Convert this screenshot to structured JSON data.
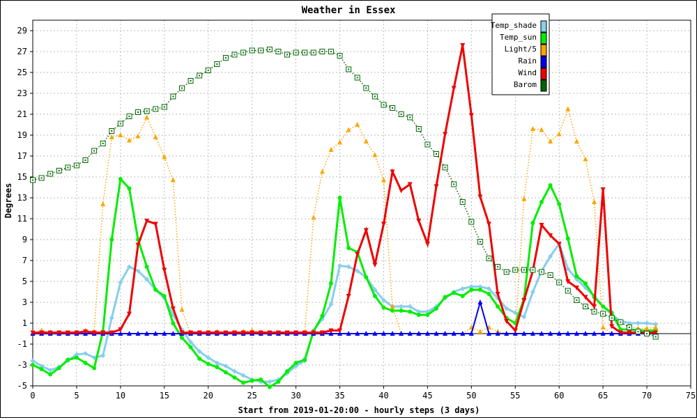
{
  "chart_data": {
    "type": "line",
    "title": "Weather in Essex",
    "xlabel": "Start from 2019-01-20:00 - hourly steps (3 days)",
    "ylabel": "Degrees",
    "xlim": [
      0,
      75
    ],
    "ylim": [
      -5,
      30
    ],
    "x_ticks": [
      0,
      5,
      10,
      15,
      20,
      25,
      30,
      35,
      40,
      45,
      50,
      55,
      60,
      65,
      70,
      75
    ],
    "y_ticks": [
      -5,
      -3,
      -1,
      1,
      3,
      5,
      7,
      9,
      11,
      13,
      15,
      17,
      19,
      21,
      23,
      25,
      27,
      29
    ],
    "grid": true,
    "legend_position": "top-right",
    "series": [
      {
        "name": "Temp_shade",
        "color": "#87ceeb",
        "marker": "diamond",
        "line": "solid",
        "values": [
          -2.6,
          -3.1,
          -3.5,
          -3.2,
          -2.6,
          -2.0,
          -1.9,
          -2.3,
          -2.1,
          1.5,
          4.9,
          6.4,
          6.0,
          5.2,
          4.2,
          3.4,
          1.8,
          0.4,
          -0.8,
          -1.7,
          -2.3,
          -2.8,
          -3.1,
          -3.6,
          -4.0,
          -4.4,
          -4.6,
          -4.6,
          -4.4,
          -3.8,
          -3.1,
          -2.6,
          0.3,
          1.4,
          2.8,
          6.5,
          6.4,
          6.0,
          5.4,
          4.2,
          3.2,
          2.6,
          2.6,
          2.6,
          2.1,
          2.1,
          2.6,
          3.4,
          4.0,
          4.3,
          4.5,
          4.5,
          4.3,
          3.4,
          2.4,
          2.0,
          1.6,
          4.0,
          6.0,
          7.4,
          8.6,
          6.2,
          5.2,
          4.4,
          3.6,
          2.6,
          1.8,
          1.2,
          1.0,
          1.0,
          1.0,
          0.9
        ]
      },
      {
        "name": "Temp_sun",
        "color": "#00ee00",
        "marker": "circle",
        "line": "solid",
        "values": [
          -3.0,
          -3.4,
          -3.9,
          -3.3,
          -2.5,
          -2.3,
          -2.8,
          -3.3,
          0.2,
          9.0,
          14.8,
          13.9,
          9.0,
          6.4,
          4.2,
          3.6,
          1.0,
          -0.4,
          -1.3,
          -2.4,
          -2.9,
          -3.2,
          -3.7,
          -4.2,
          -4.7,
          -4.5,
          -4.4,
          -5.1,
          -4.6,
          -3.6,
          -2.8,
          -2.5,
          0.2,
          1.7,
          4.8,
          13.0,
          8.2,
          7.8,
          5.4,
          3.6,
          2.5,
          2.2,
          2.2,
          2.1,
          1.8,
          1.8,
          2.4,
          3.5,
          3.9,
          3.6,
          4.2,
          4.2,
          3.8,
          2.6,
          1.5,
          1.0,
          3.3,
          10.6,
          12.6,
          14.2,
          12.4,
          9.1,
          5.5,
          4.8,
          3.5,
          2.6,
          2.0,
          0.4,
          0.4,
          0.3,
          0.3,
          0.3
        ]
      },
      {
        "name": "Light/5",
        "color": "#ffa500",
        "marker": "triangle-up",
        "line": "dotted",
        "values": [
          0.1,
          0.3,
          0.1,
          0.0,
          0.0,
          0.0,
          0.3,
          0.2,
          12.4,
          18.8,
          19.0,
          18.5,
          18.9,
          20.7,
          18.8,
          16.9,
          14.7,
          2.3,
          0.0,
          0.1,
          0.1,
          0.2,
          0.0,
          0.1,
          0.2,
          0.3,
          0.1,
          0.0,
          0.0,
          0.0,
          0.0,
          0.0,
          11.1,
          15.5,
          17.6,
          18.3,
          19.5,
          20.0,
          18.4,
          17.1,
          14.7,
          2.6,
          0.0,
          0.0,
          0.0,
          0.0,
          0.0,
          0.0,
          0.0,
          0.0,
          0.6,
          0.2,
          0.6,
          0.2,
          0.0,
          0.0,
          12.9,
          19.6,
          19.5,
          18.4,
          19.1,
          21.5,
          18.4,
          16.7,
          12.6,
          0.6,
          0.0,
          0.0,
          0.7,
          0.5,
          0.5,
          0.6
        ]
      },
      {
        "name": "Rain",
        "color": "#0000ee",
        "marker": "triangle-up",
        "line": "solid",
        "values": [
          0,
          0,
          0,
          0,
          0,
          0,
          0,
          0,
          0,
          0,
          0,
          0,
          0,
          0,
          0,
          0,
          0,
          0,
          0,
          0,
          0,
          0,
          0,
          0,
          0,
          0,
          0,
          0,
          0,
          0,
          0,
          0,
          0,
          0,
          0,
          0,
          0,
          0,
          0,
          0,
          0,
          0,
          0,
          0,
          0,
          0,
          0,
          0,
          0,
          0,
          0,
          3.0,
          0,
          0,
          0,
          0,
          0,
          0,
          0,
          0,
          0,
          0,
          0,
          0,
          0,
          0,
          0,
          0,
          0,
          0,
          0,
          0
        ]
      },
      {
        "name": "Wind",
        "color": "#ee0000",
        "marker": "triangle-down",
        "line": "solid",
        "values": [
          0.1,
          0.1,
          0.1,
          0.1,
          0.1,
          0.1,
          0.2,
          0.1,
          0.1,
          0.1,
          0.4,
          1.9,
          8.5,
          10.8,
          10.5,
          6.1,
          2.4,
          0.1,
          0.1,
          0.1,
          0.1,
          0.1,
          0.1,
          0.1,
          0.1,
          0.1,
          0.1,
          0.1,
          0.1,
          0.1,
          0.1,
          0.1,
          0.1,
          0.1,
          0.3,
          0.3,
          3.6,
          7.6,
          9.9,
          6.6,
          10.5,
          15.5,
          13.7,
          14.3,
          10.8,
          8.6,
          14.1,
          19.1,
          23.5,
          27.6,
          20.9,
          13.1,
          10.5,
          3.8,
          1.2,
          0.3,
          3.2,
          6.0,
          10.4,
          9.4,
          8.6,
          5.0,
          4.4,
          3.5,
          2.6,
          13.8,
          0.7,
          0.1,
          0.1,
          0.1,
          0.1,
          0.1
        ]
      },
      {
        "name": "Barom",
        "color": "#006400",
        "marker": "square",
        "line": "dotted",
        "values": [
          14.7,
          14.9,
          15.3,
          15.6,
          15.9,
          16.1,
          16.6,
          17.5,
          18.2,
          19.4,
          20.1,
          20.8,
          21.2,
          21.3,
          21.5,
          21.7,
          22.7,
          23.5,
          24.2,
          24.7,
          25.2,
          25.8,
          26.4,
          26.7,
          26.9,
          27.1,
          27.1,
          27.2,
          27.0,
          26.7,
          26.9,
          26.9,
          26.9,
          27.0,
          27.0,
          26.6,
          25.3,
          24.5,
          23.5,
          22.7,
          21.9,
          21.6,
          21.0,
          20.7,
          19.6,
          18.1,
          17.2,
          15.9,
          14.3,
          12.6,
          10.7,
          8.8,
          7.2,
          6.4,
          5.9,
          6.1,
          6.1,
          6.1,
          5.9,
          5.6,
          4.9,
          4.1,
          3.2,
          2.6,
          2.1,
          1.9,
          1.5,
          1.1,
          0.6,
          0.2,
          0.0,
          -0.3
        ]
      }
    ]
  }
}
